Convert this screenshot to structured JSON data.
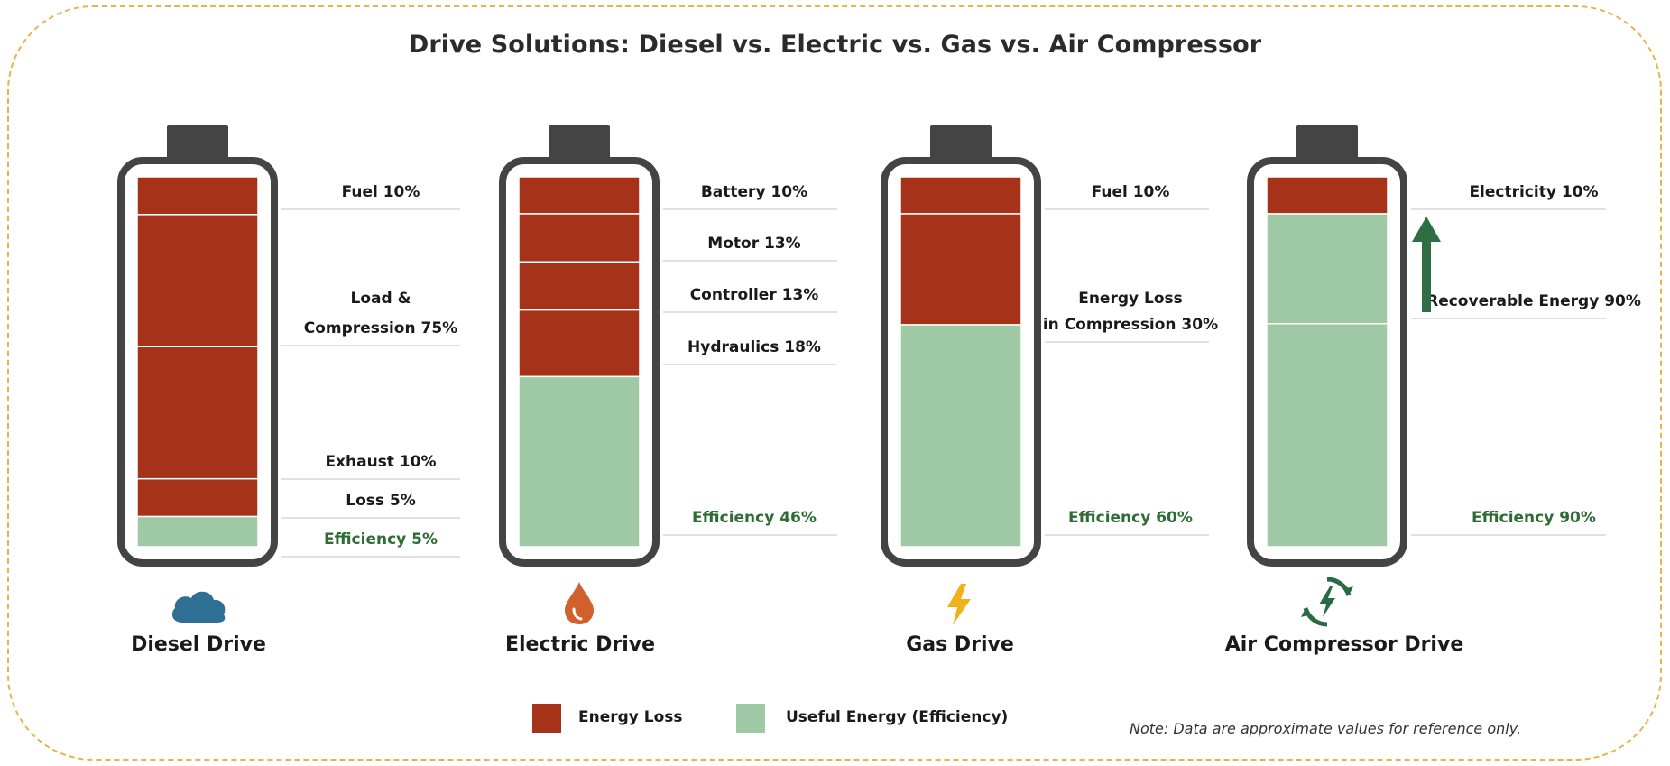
{
  "title": "Drive Solutions: Diesel vs. Electric vs. Gas vs. Air Compressor",
  "colors": {
    "loss": "#a63319",
    "useful": "#9fc9a5",
    "efficiency_text": "#2e6b35",
    "battery_outline": "#444444",
    "arrow": "#2f6e45"
  },
  "chart_data": {
    "type": "bar",
    "orientation": "vertical-stacked",
    "ylim": [
      0,
      100
    ],
    "legend": [
      {
        "name": "Energy Loss",
        "color": "#a63319"
      },
      {
        "name": "Useful Energy (Efficiency)",
        "color": "#9fc9a5"
      }
    ],
    "legend_position": "bottom-center",
    "note": "Note: Data are approximate values for reference only.",
    "drives": [
      {
        "name": "Diesel Drive",
        "icon": "cloud-icon",
        "segments": [
          {
            "category": "Energy Loss",
            "value": 10,
            "label": [
              "Fuel 10%"
            ]
          },
          {
            "category": "Energy Loss",
            "value": 75,
            "label": [
              "Load &",
              "Compression 75%"
            ]
          },
          {
            "category": "Energy Loss",
            "value": 10,
            "label": [
              "Exhaust 10%"
            ]
          },
          {
            "category": "Energy Loss",
            "value": 5,
            "label": [
              "Loss 5%"
            ]
          },
          {
            "category": "Useful Energy (Efficiency)",
            "value": 5,
            "label": [
              "Efficiency 5%"
            ]
          }
        ]
      },
      {
        "name": "Electric Drive",
        "icon": "droplet-icon",
        "segments": [
          {
            "category": "Energy Loss",
            "value": 10,
            "label": [
              "Battery 10%"
            ]
          },
          {
            "category": "Energy Loss",
            "value": 13,
            "label": [
              "Motor 13%"
            ]
          },
          {
            "category": "Energy Loss",
            "value": 13,
            "label": [
              "Controller 13%"
            ]
          },
          {
            "category": "Energy Loss",
            "value": 18,
            "label": [
              "Hydraulics 18%"
            ]
          },
          {
            "category": "Useful Energy (Efficiency)",
            "value": 46,
            "label": [
              "Efficiency 46%"
            ]
          }
        ]
      },
      {
        "name": "Gas Drive",
        "icon": "lightning-bolt-icon",
        "segments": [
          {
            "category": "Energy Loss",
            "value": 10,
            "label": [
              "Fuel 10%"
            ]
          },
          {
            "category": "Energy Loss",
            "value": 30,
            "label": [
              "Energy Loss",
              "in Compression 30%"
            ]
          },
          {
            "category": "Useful Energy (Efficiency)",
            "value": 60,
            "label": [
              "Efficiency 60%"
            ]
          }
        ]
      },
      {
        "name": "Air Compressor Drive",
        "icon": "recycle-bolt-icon",
        "arrow_up": true,
        "segments": [
          {
            "category": "Energy Loss",
            "value": 10,
            "label": [
              "Electricity 10%"
            ]
          },
          {
            "category": "Useful Energy (Efficiency)",
            "value": 90,
            "label": [
              "Recoverable Energy 90%"
            ]
          },
          {
            "category": "Useful Energy (Efficiency)",
            "value": 90,
            "label": [
              "Efficiency 90%"
            ]
          }
        ]
      }
    ]
  }
}
